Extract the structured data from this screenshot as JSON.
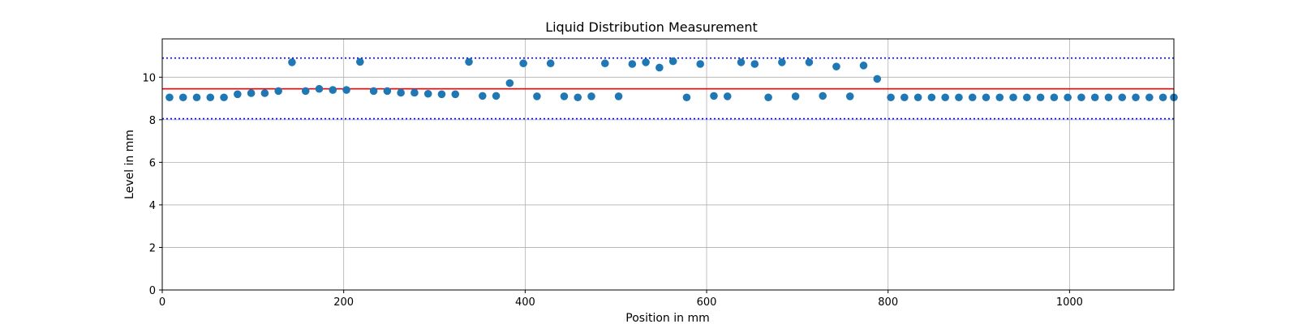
{
  "chart_data": {
    "type": "scatter",
    "title": "Liquid Distribution Measurement",
    "xlabel": "Position in mm",
    "ylabel": "Level in mm",
    "xlim": [
      0,
      1115
    ],
    "ylim": [
      0,
      11.8
    ],
    "xticks": [
      0,
      200,
      400,
      600,
      800,
      1000
    ],
    "yticks": [
      0,
      2,
      4,
      6,
      8,
      10
    ],
    "grid": true,
    "point_color": "#1f77b4",
    "reference_lines": [
      {
        "y": 9.45,
        "style": "solid",
        "color": "#ff0000"
      },
      {
        "y": 10.9,
        "style": "dotted",
        "color": "#0000ff"
      },
      {
        "y": 8.05,
        "style": "dotted",
        "color": "#0000ff"
      }
    ],
    "series": [
      {
        "x": [
          8,
          23,
          38,
          53,
          68,
          83,
          98,
          113,
          128,
          143,
          158,
          173,
          188,
          203,
          218,
          233,
          248,
          263,
          278,
          293,
          308,
          323,
          338,
          353,
          368,
          383,
          398,
          413,
          428,
          443,
          458,
          473,
          488,
          503,
          518,
          533,
          548,
          563,
          578,
          593,
          608,
          623,
          638,
          653,
          668,
          683,
          698,
          713,
          728,
          743,
          758,
          773,
          788,
          803,
          818,
          833,
          848,
          863,
          878,
          893,
          908,
          923,
          938,
          953,
          968,
          983,
          998,
          1013,
          1028,
          1043,
          1058,
          1073,
          1088,
          1103,
          1115
        ],
        "y": [
          9.05,
          9.05,
          9.05,
          9.05,
          9.05,
          9.2,
          9.25,
          9.25,
          9.35,
          10.7,
          9.35,
          9.45,
          9.4,
          9.4,
          10.72,
          9.35,
          9.35,
          9.27,
          9.27,
          9.22,
          9.2,
          9.2,
          10.72,
          9.12,
          9.12,
          9.72,
          10.65,
          9.1,
          10.65,
          9.1,
          9.05,
          9.1,
          10.65,
          9.1,
          10.62,
          10.7,
          10.45,
          10.75,
          9.05,
          10.62,
          9.12,
          9.1,
          10.7,
          10.62,
          9.05,
          10.7,
          9.1,
          10.7,
          9.12,
          10.5,
          9.1,
          10.55,
          9.92,
          9.05,
          9.05,
          9.05,
          9.05,
          9.05,
          9.05,
          9.05,
          9.05,
          9.05,
          9.05,
          9.05,
          9.05,
          9.05,
          9.05,
          9.05,
          9.05,
          9.05,
          9.05,
          9.05,
          9.05,
          9.05,
          9.05
        ]
      }
    ]
  }
}
